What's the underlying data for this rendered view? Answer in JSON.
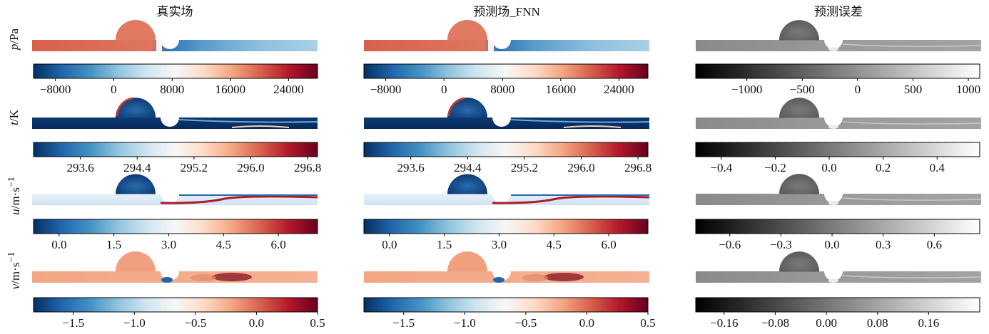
{
  "columns": {
    "true_field": "真实场",
    "predicted_field": "预测场_FNN",
    "prediction_error": "预测误差"
  },
  "rows": [
    {
      "var": "p",
      "unit": "/Pa",
      "sup": "",
      "ticks_main": [
        "−8000",
        "0",
        "8000",
        "16000",
        "24000"
      ],
      "ticks_err": [
        "−1000",
        "−500",
        "0",
        "500",
        "1000"
      ]
    },
    {
      "var": "t",
      "unit": "/K",
      "sup": "",
      "ticks_main": [
        "293.6",
        "294.4",
        "295.2",
        "296.0",
        "296.8"
      ],
      "ticks_err": [
        "−0.4",
        "−0.2",
        "0.0",
        "0.2",
        "0.4"
      ]
    },
    {
      "var": "u",
      "unit": "/m·s",
      "sup": "−1",
      "ticks_main": [
        "0.0",
        "1.5",
        "3.0",
        "4.5",
        "6.0"
      ],
      "ticks_err": [
        "−0.6",
        "−0.3",
        "0.0",
        "0.3",
        "0.6"
      ]
    },
    {
      "var": "v",
      "unit": "/m·s",
      "sup": "−1",
      "ticks_main": [
        "−1.5",
        "−1.0",
        "−0.5",
        "0.0",
        "0.5"
      ],
      "ticks_err": [
        "−0.16",
        "−0.08",
        "0.00",
        "0.08",
        "0.16"
      ]
    }
  ],
  "colors": {
    "rdbu": [
      "#053061",
      "#2166ac",
      "#4393c3",
      "#92c5de",
      "#d1e5f0",
      "#f7f7f7",
      "#fddbc7",
      "#f4a582",
      "#d6604d",
      "#b2182b",
      "#67001f"
    ],
    "gray": [
      "#000000",
      "#ffffff"
    ]
  }
}
